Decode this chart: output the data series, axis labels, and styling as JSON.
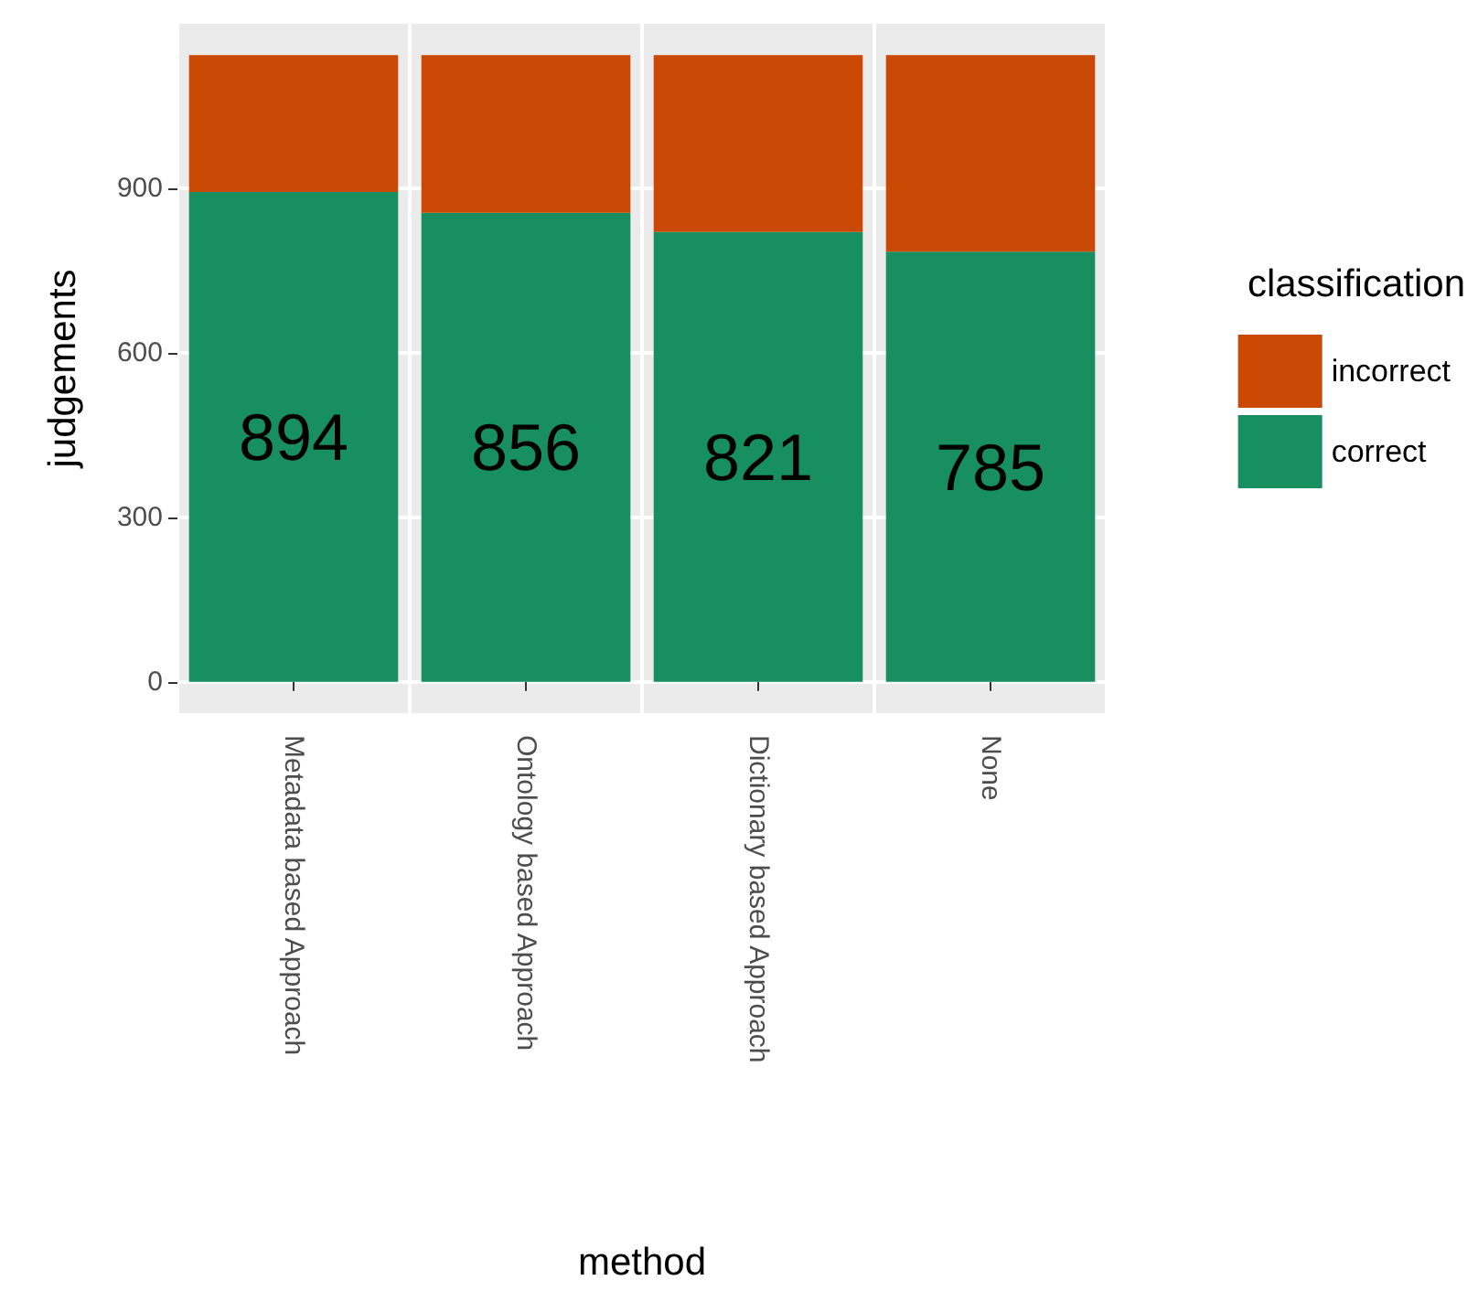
{
  "chart_data": {
    "type": "bar",
    "xlabel": "method",
    "ylabel": "judgements",
    "legend_title": "classification",
    "categories": [
      "Metadata based Approach",
      "Ontology based Approach",
      "Dictionary based Approach",
      "None"
    ],
    "series": [
      {
        "name": "correct",
        "color": "#178f60",
        "values": [
          894,
          856,
          821,
          785
        ],
        "value_labels": [
          "894",
          "856",
          "821",
          "785"
        ]
      },
      {
        "name": "incorrect",
        "color": "#c94905",
        "values": [
          250,
          288,
          323,
          359
        ]
      }
    ],
    "stacked": true,
    "ylim": [
      -57,
      1201
    ],
    "yticks": [
      0,
      300,
      600,
      900
    ],
    "grid": true,
    "legend": "right"
  }
}
